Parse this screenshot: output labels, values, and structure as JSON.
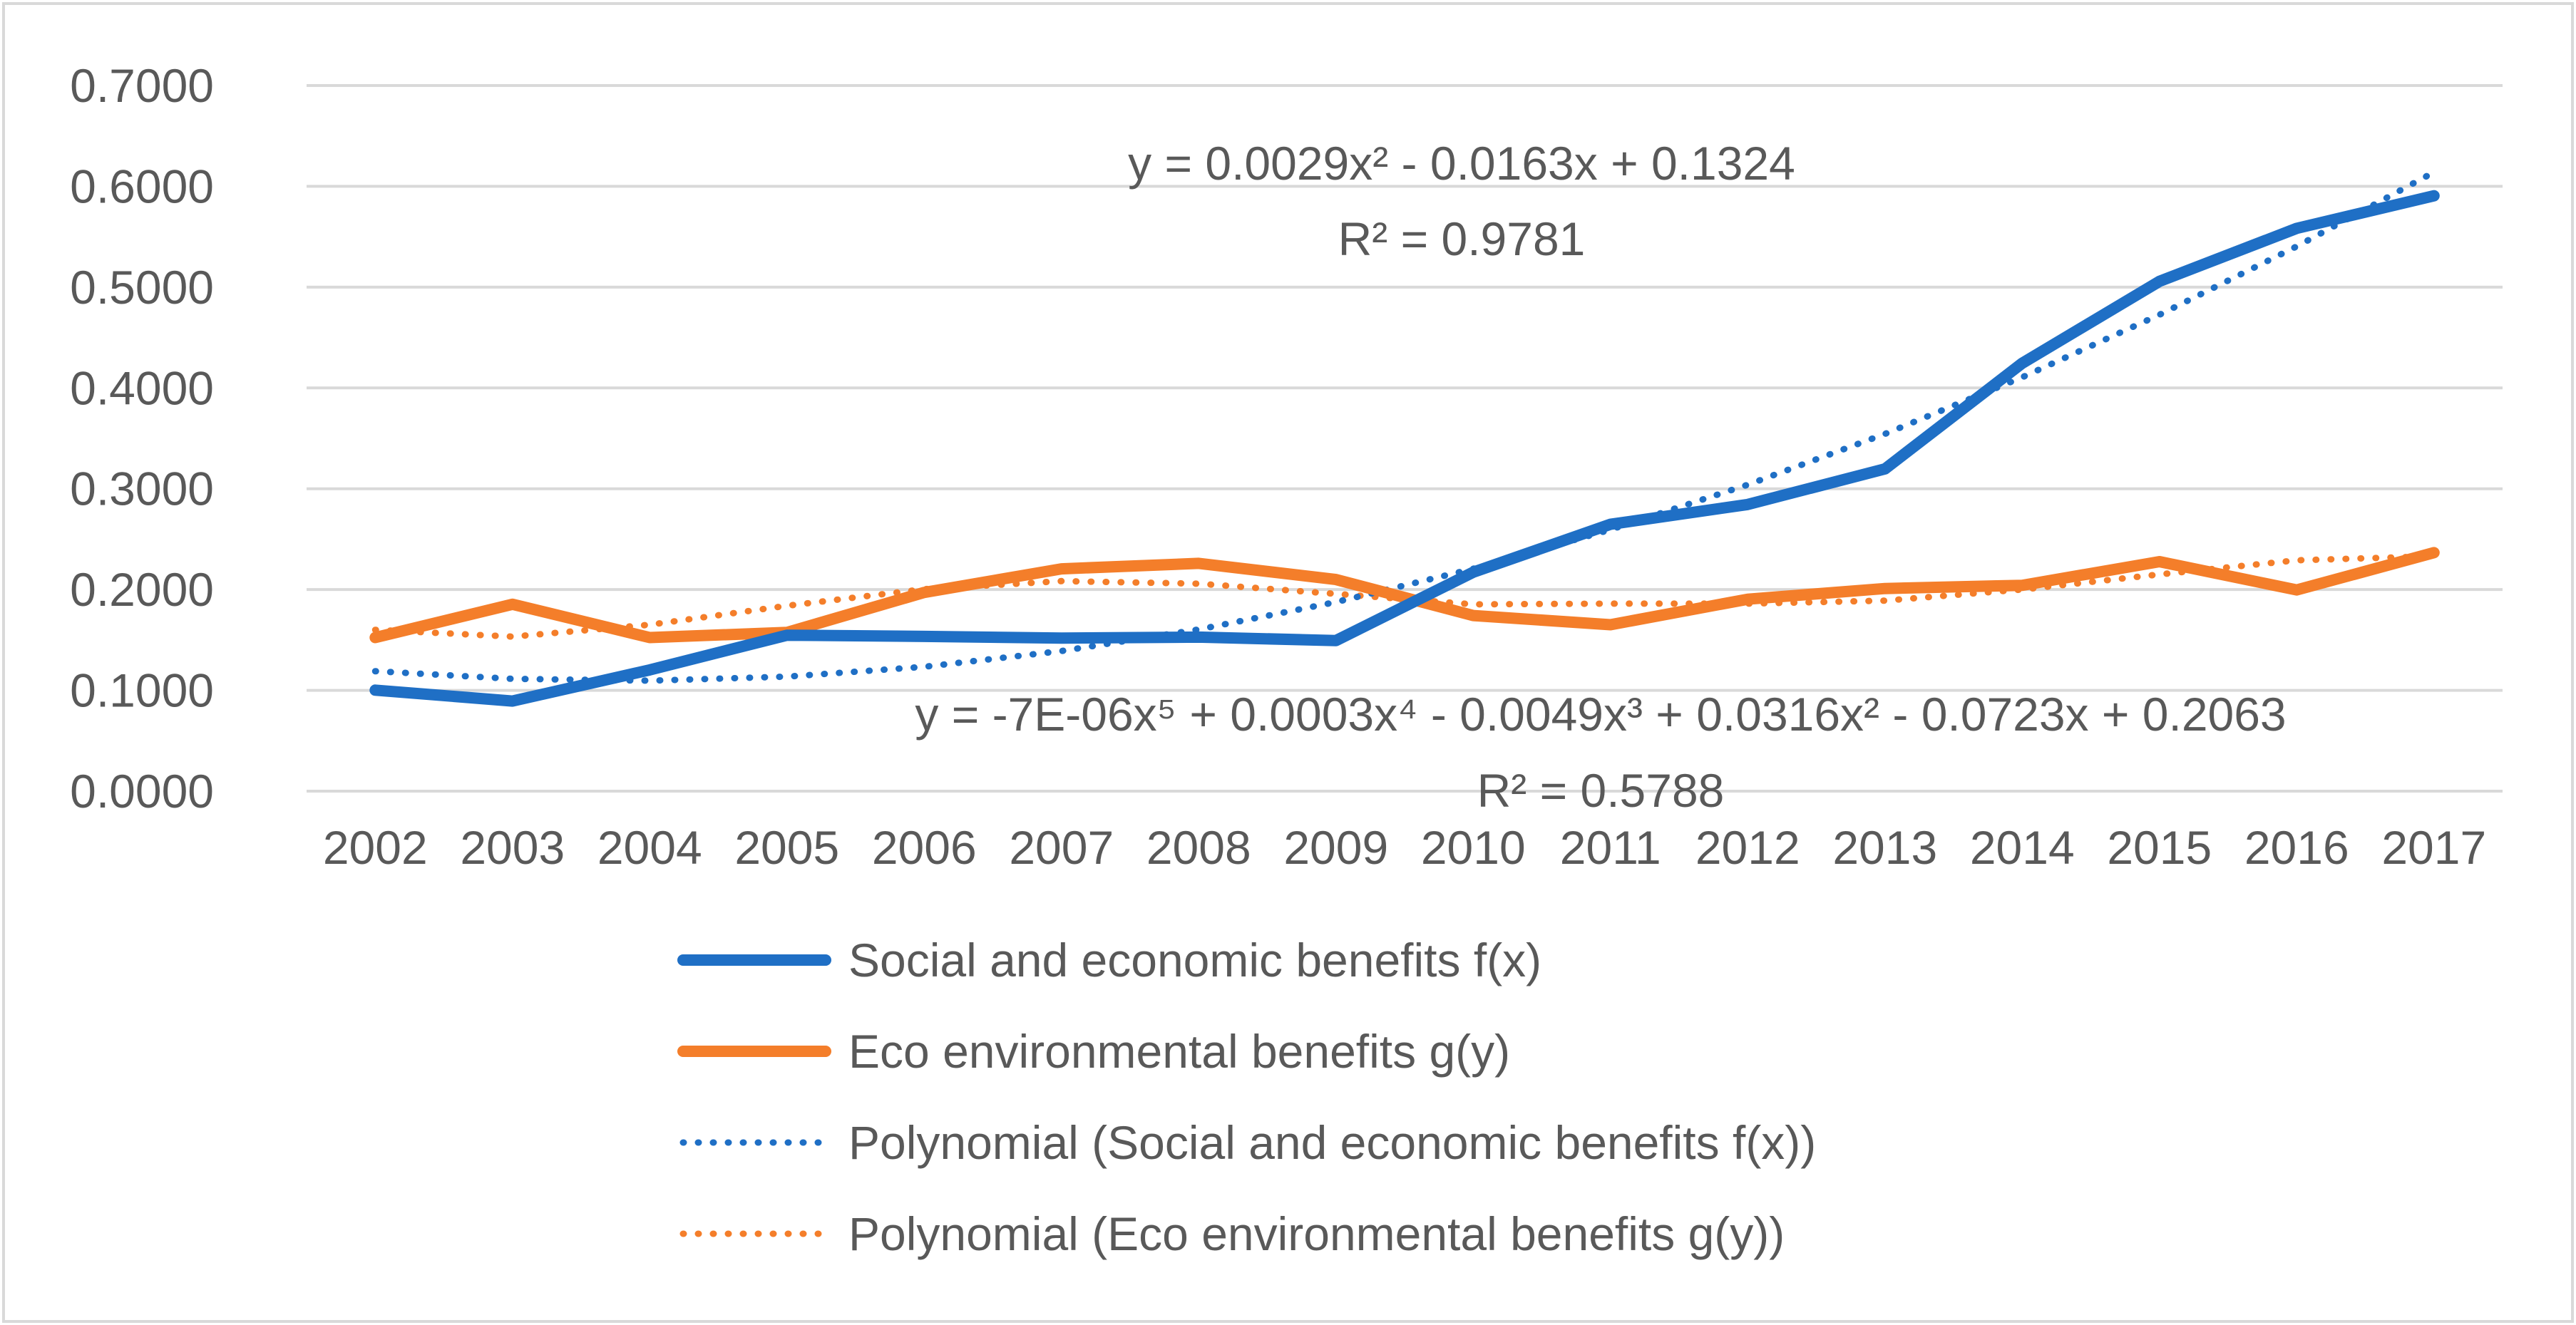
{
  "chart_data": {
    "type": "line",
    "title": "",
    "xlabel": "",
    "ylabel": "",
    "categories": [
      "2002",
      "2003",
      "2004",
      "2005",
      "2006",
      "2007",
      "2008",
      "2009",
      "2010",
      "2011",
      "2012",
      "2013",
      "2014",
      "2015",
      "2016",
      "2017"
    ],
    "y_ticks": [
      "0.0000",
      "0.1000",
      "0.2000",
      "0.3000",
      "0.4000",
      "0.5000",
      "0.6000",
      "0.7000"
    ],
    "ylim": [
      0,
      0.7
    ],
    "grid": true,
    "legend_position": "bottom",
    "series": [
      {
        "name": "Social and economic benefits  f(x)",
        "style": "solid",
        "color": "#1F6FC5",
        "values": [
          0.1002,
          0.0894,
          0.1203,
          0.1547,
          0.1535,
          0.1519,
          0.1528,
          0.1494,
          0.2172,
          0.2647,
          0.2844,
          0.3197,
          0.4245,
          0.5058,
          0.5583,
          0.5906
        ]
      },
      {
        "name": "Eco environmental benefits  g(y)",
        "style": "solid",
        "color": "#F47E2A",
        "values": [
          0.1524,
          0.1854,
          0.1524,
          0.1575,
          0.1971,
          0.2205,
          0.226,
          0.2099,
          0.1742,
          0.1651,
          0.1904,
          0.201,
          0.2042,
          0.2277,
          0.1996,
          0.2366
        ]
      },
      {
        "name": "Polynomial (Social and economic benefits  f(x))",
        "style": "dotted",
        "color": "#1F6FC5",
        "values": [
          0.119,
          0.1114,
          0.1096,
          0.1136,
          0.1234,
          0.139,
          0.1604,
          0.1876,
          0.2206,
          0.2594,
          0.304,
          0.3544,
          0.4106,
          0.4726,
          0.5404,
          0.614
        ]
      },
      {
        "name": "Polynomial (Eco environmental benefits  g(y))",
        "style": "dotted",
        "color": "#F47E2A",
        "values": [
          0.16,
          0.1533,
          0.1651,
          0.1839,
          0.2004,
          0.2084,
          0.2058,
          0.1957,
          0.1853,
          0.186,
          0.186,
          0.189,
          0.2,
          0.215,
          0.229,
          0.233
        ]
      }
    ],
    "annotations": [
      {
        "lines": [
          "y = 0.0029x² - 0.0163x + 0.1324",
          "R² = 0.9781"
        ]
      },
      {
        "lines": [
          "y = -7E-06x⁵ + 0.0003x⁴ - 0.0049x³ + 0.0316x² - 0.0723x + 0.2063",
          "R² = 0.5788"
        ]
      }
    ]
  }
}
